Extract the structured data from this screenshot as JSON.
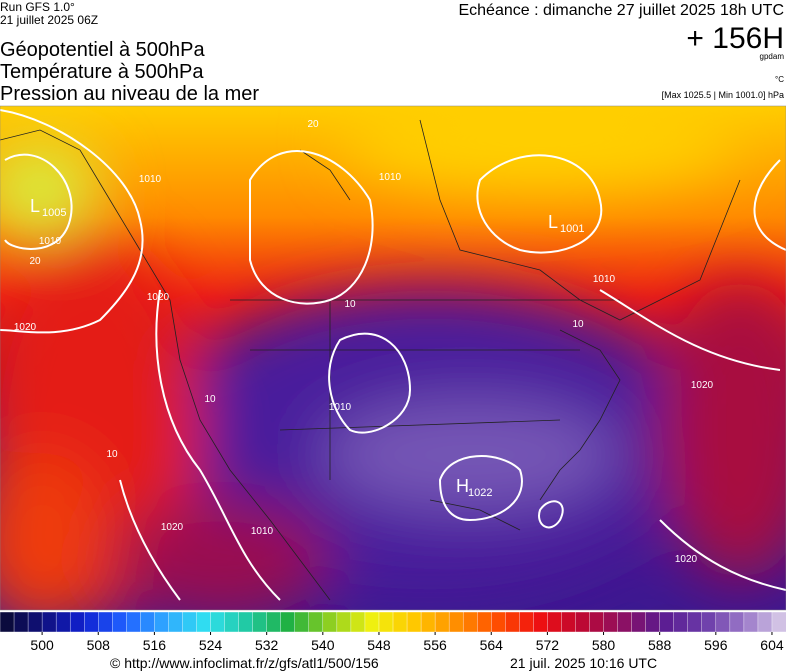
{
  "header": {
    "run": "Run GFS 1.0°",
    "date": "21 juillet 2025 06Z",
    "echeance": "Echéance : dimanche 27 juillet 2025 18h UTC",
    "lead": "+ 156H",
    "unit_geo": "gpdam",
    "unit_temp": "°C",
    "range": "[Max 1025.5 | Min 1001.0] hPa"
  },
  "titles": [
    "Géopotentiel à 500hPa",
    "Température à 500hPa",
    "Pression au niveau de la mer"
  ],
  "map": {
    "isobar_labels": [
      "1010",
      "1010",
      "20",
      "1020",
      "1020",
      "1010",
      "1010",
      "10",
      "10",
      "1020",
      "1010",
      "10",
      "10",
      "1020",
      "1010",
      "1020",
      "20"
    ],
    "centers": [
      {
        "letter": "L",
        "value": "1005"
      },
      {
        "letter": "L",
        "value": "1001"
      },
      {
        "letter": "H",
        "value": "1022"
      }
    ]
  },
  "colorbar": {
    "lim": [
      494,
      606
    ],
    "step": 2,
    "stops": [
      "#0a0a30",
      "#10107a",
      "#1020d0",
      "#2060ff",
      "#30a8ff",
      "#30e0f0",
      "#20c8a0",
      "#20b040",
      "#90d020",
      "#f0f010",
      "#ffc800",
      "#ff9000",
      "#ff5000",
      "#f01010",
      "#c00830",
      "#901060",
      "#5a1a90",
      "#6a3aa8",
      "#9a78c8",
      "#dcd0ea"
    ],
    "ticks": [
      500,
      508,
      516,
      524,
      532,
      540,
      548,
      556,
      564,
      572,
      580,
      588,
      596,
      604
    ]
  },
  "footer": {
    "url": "© http://www.infoclimat.fr/z/gfs/atl1/500/156",
    "time": "21 juil. 2025 10:16 UTC"
  }
}
